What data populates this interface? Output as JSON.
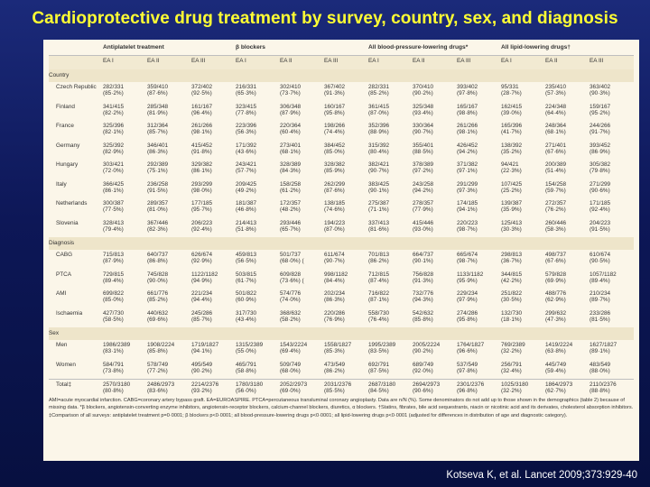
{
  "title": "Cardioprotective drug treatment by survey, country, sex, and diagnosis",
  "citation": "Kotseva K, et al. Lancet 2009;373:929-40",
  "table": {
    "groups": [
      {
        "label": "Antiplatelet treatment",
        "subs": [
          "EA I",
          "EA II",
          "EA III"
        ]
      },
      {
        "label": "β blockers",
        "subs": [
          "EA I",
          "EA II",
          "EA III"
        ]
      },
      {
        "label": "All blood-pressure-lowering drugs*",
        "subs": [
          "EA I",
          "EA II",
          "EA III"
        ]
      },
      {
        "label": "All lipid-lowering drugs†",
        "subs": [
          "EA I",
          "EA II",
          "EA III"
        ]
      }
    ],
    "sections": [
      {
        "heading": "Country",
        "rows": [
          {
            "label": "Czech Republic",
            "cells": [
              [
                "282/331",
                "(85·2%)"
              ],
              [
                "359/410",
                "(87·6%)"
              ],
              [
                "372/402",
                "(92·5%)"
              ],
              [
                "216/331",
                "(65·3%)"
              ],
              [
                "302/410",
                "(73·7%)"
              ],
              [
                "367/402",
                "(91·3%)"
              ],
              [
                "282/331",
                "(85·2%)"
              ],
              [
                "370/410",
                "(90·2%)"
              ],
              [
                "393/402",
                "(97·8%)"
              ],
              [
                "95/331",
                "(28·7%)"
              ],
              [
                "235/410",
                "(57·3%)"
              ],
              [
                "363/402",
                "(90·3%)"
              ]
            ]
          },
          {
            "label": "Finland",
            "cells": [
              [
                "341/415",
                "(82·2%)"
              ],
              [
                "285/348",
                "(81·9%)"
              ],
              [
                "161/167",
                "(96·4%)"
              ],
              [
                "323/415",
                "(77·8%)"
              ],
              [
                "306/348",
                "(87·9%)"
              ],
              [
                "160/167",
                "(95·8%)"
              ],
              [
                "361/415",
                "(87·0%)"
              ],
              [
                "325/348",
                "(93·4%)"
              ],
              [
                "165/167",
                "(98·8%)"
              ],
              [
                "162/415",
                "(39·0%)"
              ],
              [
                "224/348",
                "(64·4%)"
              ],
              [
                "159/167",
                "(95·2%)"
              ]
            ]
          },
          {
            "label": "France",
            "cells": [
              [
                "325/396",
                "(82·1%)"
              ],
              [
                "312/364",
                "(85·7%)"
              ],
              [
                "261/266",
                "(98·1%)"
              ],
              [
                "223/396",
                "(56·3%)"
              ],
              [
                "220/364",
                "(60·4%)"
              ],
              [
                "198/266",
                "(74·4%)"
              ],
              [
                "352/396",
                "(88·9%)"
              ],
              [
                "330/364",
                "(90·7%)"
              ],
              [
                "261/266",
                "(98·1%)"
              ],
              [
                "165/396",
                "(41·7%)"
              ],
              [
                "248/364",
                "(68·1%)"
              ],
              [
                "244/266",
                "(91·7%)"
              ]
            ]
          },
          {
            "label": "Germany",
            "cells": [
              [
                "325/392",
                "(82·9%)"
              ],
              [
                "346/401",
                "(86·3%)"
              ],
              [
                "415/452",
                "(91·8%)"
              ],
              [
                "171/392",
                "(43·6%)"
              ],
              [
                "273/401",
                "(68·1%)"
              ],
              [
                "384/452",
                "(85·0%)"
              ],
              [
                "315/392",
                "(80·4%)"
              ],
              [
                "355/401",
                "(88·5%)"
              ],
              [
                "426/452",
                "(94·2%)"
              ],
              [
                "138/392",
                "(35·2%)"
              ],
              [
                "271/401",
                "(67·6%)"
              ],
              [
                "393/452",
                "(86·9%)"
              ]
            ]
          },
          {
            "label": "Hungary",
            "cells": [
              [
                "303/421",
                "(72·0%)"
              ],
              [
                "292/389",
                "(75·1%)"
              ],
              [
                "329/382",
                "(86·1%)"
              ],
              [
                "243/421",
                "(57·7%)"
              ],
              [
                "328/389",
                "(84·3%)"
              ],
              [
                "328/382",
                "(85·9%)"
              ],
              [
                "382/421",
                "(90·7%)"
              ],
              [
                "378/389",
                "(97·2%)"
              ],
              [
                "371/382",
                "(97·1%)"
              ],
              [
                "94/421",
                "(22·3%)"
              ],
              [
                "200/389",
                "(51·4%)"
              ],
              [
                "305/382",
                "(79·8%)"
              ]
            ]
          },
          {
            "label": "Italy",
            "cells": [
              [
                "366/425",
                "(86·1%)"
              ],
              [
                "236/258",
                "(91·5%)"
              ],
              [
                "293/299",
                "(98·0%)"
              ],
              [
                "209/425",
                "(49·2%)"
              ],
              [
                "158/258",
                "(61·2%)"
              ],
              [
                "262/299",
                "(87·6%)"
              ],
              [
                "383/425",
                "(90·1%)"
              ],
              [
                "243/258",
                "(94·2%)"
              ],
              [
                "291/299",
                "(97·3%)"
              ],
              [
                "107/425",
                "(25·2%)"
              ],
              [
                "154/258",
                "(59·7%)"
              ],
              [
                "271/299",
                "(90·6%)"
              ]
            ]
          },
          {
            "label": "Netherlands",
            "cells": [
              [
                "300/387",
                "(77·5%)"
              ],
              [
                "289/357",
                "(81·0%)"
              ],
              [
                "177/185",
                "(95·7%)"
              ],
              [
                "181/387",
                "(46·8%)"
              ],
              [
                "172/357",
                "(48·2%)"
              ],
              [
                "138/185",
                "(74·6%)"
              ],
              [
                "275/387",
                "(71·1%)"
              ],
              [
                "278/357",
                "(77·9%)"
              ],
              [
                "174/185",
                "(94·1%)"
              ],
              [
                "139/387",
                "(35·9%)"
              ],
              [
                "272/357",
                "(76·2%)"
              ],
              [
                "171/185",
                "(92·4%)"
              ]
            ]
          },
          {
            "label": "Slovenia",
            "cells": [
              [
                "328/413",
                "(79·4%)"
              ],
              [
                "367/446",
                "(82·3%)"
              ],
              [
                "206/223",
                "(92·4%)"
              ],
              [
                "214/413",
                "(51·8%)"
              ],
              [
                "293/446",
                "(65·7%)"
              ],
              [
                "194/223",
                "(87·0%)"
              ],
              [
                "337/413",
                "(81·6%)"
              ],
              [
                "415/446",
                "(93·0%)"
              ],
              [
                "220/223",
                "(98·7%)"
              ],
              [
                "125/413",
                "(30·3%)"
              ],
              [
                "260/446",
                "(58·3%)"
              ],
              [
                "204/223",
                "(91·5%)"
              ]
            ]
          }
        ]
      },
      {
        "heading": "Diagnosis",
        "rows": [
          {
            "label": "CABG",
            "cells": [
              [
                "715/813",
                "(87·9%)"
              ],
              [
                "640/737",
                "(86·8%)"
              ],
              [
                "626/674",
                "(92·9%)"
              ],
              [
                "459/813",
                "(56·5%)"
              ],
              [
                "501/737",
                "(68·0%) ("
              ],
              [
                "611/674",
                "(90·7%)"
              ],
              [
                "701/813",
                "(86·2%)"
              ],
              [
                "664/737",
                "(90·1%)"
              ],
              [
                "665/674",
                "(98·7%)"
              ],
              [
                "298/813",
                "(36·7%)"
              ],
              [
                "498/737",
                "(67·6%)"
              ],
              [
                "610/674",
                "(90·5%)"
              ]
            ]
          },
          {
            "label": "PTCA",
            "cells": [
              [
                "729/815",
                "(89·4%)"
              ],
              [
                "745/828",
                "(90·0%)"
              ],
              [
                "1122/1182",
                "(94·9%)"
              ],
              [
                "503/815",
                "(61·7%)"
              ],
              [
                "609/828",
                "(73·6%) ("
              ],
              [
                "998/1182",
                "(84·4%)"
              ],
              [
                "712/815",
                "(87·4%)"
              ],
              [
                "756/828",
                "(91·3%)"
              ],
              [
                "1133/1182",
                "(95·9%)"
              ],
              [
                "344/815",
                "(42·2%)"
              ],
              [
                "579/828",
                "(69·9%)"
              ],
              [
                "1057/1182",
                "(89·4%)"
              ]
            ]
          },
          {
            "label": "AMI",
            "cells": [
              [
                "699/822",
                "(85·0%)"
              ],
              [
                "661/776",
                "(85·2%)"
              ],
              [
                "221/234",
                "(94·4%)"
              ],
              [
                "501/822",
                "(60·9%)"
              ],
              [
                "574/776",
                "(74·0%)"
              ],
              [
                "202/234",
                "(86·3%)"
              ],
              [
                "716/822",
                "(87·1%)"
              ],
              [
                "732/776",
                "(94·3%)"
              ],
              [
                "229/234",
                "(97·9%)"
              ],
              [
                "251/822",
                "(30·5%)"
              ],
              [
                "488/776",
                "(62·9%)"
              ],
              [
                "210/234",
                "(89·7%)"
              ]
            ]
          },
          {
            "label": "Ischaemia",
            "cells": [
              [
                "427/730",
                "(58·5%)"
              ],
              [
                "440/632",
                "(69·6%)"
              ],
              [
                "245/286",
                "(85·7%)"
              ],
              [
                "317/730",
                "(43·4%)"
              ],
              [
                "368/632",
                "(58·2%)"
              ],
              [
                "220/286",
                "(76·9%)"
              ],
              [
                "558/730",
                "(76·4%)"
              ],
              [
                "542/632",
                "(85·8%)"
              ],
              [
                "274/286",
                "(95·8%)"
              ],
              [
                "132/730",
                "(18·1%)"
              ],
              [
                "299/632",
                "(47·3%)"
              ],
              [
                "233/286",
                "(81·5%)"
              ]
            ]
          }
        ]
      },
      {
        "heading": "Sex",
        "rows": [
          {
            "label": "Men",
            "cells": [
              [
                "1986/2389",
                "(83·1%)"
              ],
              [
                "1908/2224",
                "(85·8%)"
              ],
              [
                "1719/1827",
                "(94·1%)"
              ],
              [
                "1315/2389",
                "(55·0%)"
              ],
              [
                "1543/2224",
                "(69·4%)"
              ],
              [
                "1558/1827",
                "(85·3%)"
              ],
              [
                "1995/2389",
                "(83·5%)"
              ],
              [
                "2005/2224",
                "(90·2%)"
              ],
              [
                "1764/1827",
                "(96·6%)"
              ],
              [
                "769/2389",
                "(32·2%)"
              ],
              [
                "1419/2224",
                "(63·8%)"
              ],
              [
                "1627/1827",
                "(89·1%)"
              ]
            ]
          },
          {
            "label": "Women",
            "cells": [
              [
                "584/791",
                "(73·8%)"
              ],
              [
                "578/749",
                "(77·2%)"
              ],
              [
                "495/549",
                "(90·2%)"
              ],
              [
                "465/791",
                "(58·8%)"
              ],
              [
                "509/749",
                "(68·0%)"
              ],
              [
                "473/549",
                "(86·2%)"
              ],
              [
                "692/791",
                "(87·5%)"
              ],
              [
                "689/749",
                "(92·0%)"
              ],
              [
                "537/549",
                "(97·8%)"
              ],
              [
                "256/791",
                "(32·4%)"
              ],
              [
                "445/749",
                "(59·4%)"
              ],
              [
                "483/549",
                "(88·0%)"
              ]
            ]
          }
        ]
      },
      {
        "heading": "",
        "rows": [
          {
            "label": "Total‡",
            "cells": [
              [
                "2570/3180",
                "(80·8%)"
              ],
              [
                "2486/2973",
                "(83·6%)"
              ],
              [
                "2214/2376",
                "(93·2%)"
              ],
              [
                "1780/3180",
                "(56·0%)"
              ],
              [
                "2052/2973",
                "(69·0%)"
              ],
              [
                "2031/2376",
                "(85·5%)"
              ],
              [
                "2687/3180",
                "(84·5%)"
              ],
              [
                "2694/2973",
                "(90·6%)"
              ],
              [
                "2301/2376",
                "(96·8%)"
              ],
              [
                "1025/3180",
                "(32·2%)"
              ],
              [
                "1864/2973",
                "(62·7%)"
              ],
              [
                "2110/2376",
                "(88·8%)"
              ]
            ]
          }
        ]
      }
    ],
    "footnote": "AMI=acute myocardial infarction. CABG=coronary artery bypass graft. EA=EUROASPIRE. PTCA=percutaneous transluminal coronary angioplasty. Data are n/N (%). Some denominators do not add up to those shown in the demographics (table 2) because of missing data. *β blockers, angiotensin-converting enzyme inhibitors, angiotensin-receptor blockers, calcium-channel blockers, diuretics, α blockers. †Statins, fibrates, bile acid sequestrants, niacin or nicotinic acid and its derivates, cholesterol absorption inhibitors. ‡Comparison of all surveys: antiplatelet treatment p=0·0001; β blockers p<0·0001; all blood-pressure-lowering drugs p<0·0001; all lipid-lowering drugs p<0·0001 (adjusted for differences in distribution of age and diagnostic category)."
  }
}
